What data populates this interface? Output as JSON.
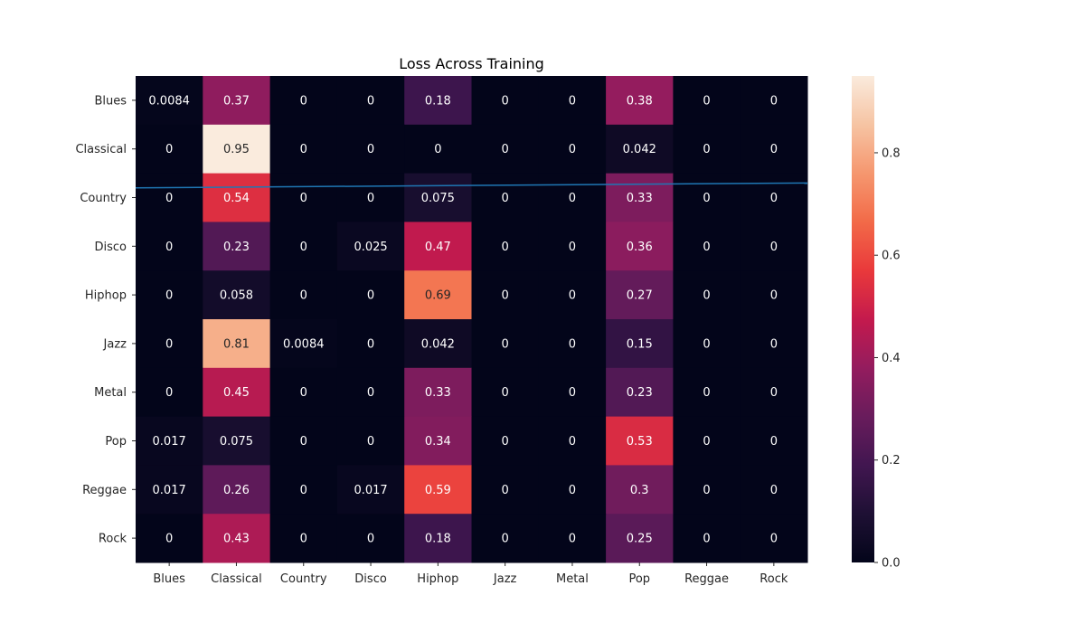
{
  "chart_data": {
    "type": "heatmap",
    "title": "Loss Across Training",
    "xlabel": "",
    "ylabel": "",
    "x_categories": [
      "Blues",
      "Classical",
      "Country",
      "Disco",
      "Hiphop",
      "Jazz",
      "Metal",
      "Pop",
      "Reggae",
      "Rock"
    ],
    "y_categories": [
      "Blues",
      "Classical",
      "Country",
      "Disco",
      "Hiphop",
      "Jazz",
      "Metal",
      "Pop",
      "Reggae",
      "Rock"
    ],
    "values": [
      [
        0.0084,
        0.37,
        0,
        0,
        0.18,
        0,
        0,
        0.38,
        0,
        0
      ],
      [
        0,
        0.95,
        0,
        0,
        0,
        0,
        0,
        0.042,
        0,
        0
      ],
      [
        0,
        0.54,
        0,
        0,
        0.075,
        0,
        0,
        0.33,
        0,
        0
      ],
      [
        0,
        0.23,
        0,
        0.025,
        0.47,
        0,
        0,
        0.36,
        0,
        0
      ],
      [
        0,
        0.058,
        0,
        0,
        0.69,
        0,
        0,
        0.27,
        0,
        0
      ],
      [
        0,
        0.81,
        0.0084,
        0,
        0.042,
        0,
        0,
        0.15,
        0,
        0
      ],
      [
        0,
        0.45,
        0,
        0,
        0.33,
        0,
        0,
        0.23,
        0,
        0
      ],
      [
        0.017,
        0.075,
        0,
        0,
        0.34,
        0,
        0,
        0.53,
        0,
        0
      ],
      [
        0.017,
        0.26,
        0,
        0.017,
        0.59,
        0,
        0,
        0.3,
        0,
        0
      ],
      [
        0,
        0.43,
        0,
        0,
        0.18,
        0,
        0,
        0.25,
        0,
        0
      ]
    ],
    "colormap": "rocket",
    "colorbar": {
      "range": [
        0,
        0.95
      ],
      "ticks": [
        "0.0",
        "0.2",
        "0.4",
        "0.6",
        "0.8"
      ]
    },
    "overlay_line": {
      "color": "#1f77b4",
      "y_start": 2.3,
      "y_end": 2.2
    },
    "grid": false,
    "legend": "colorbar-right"
  }
}
